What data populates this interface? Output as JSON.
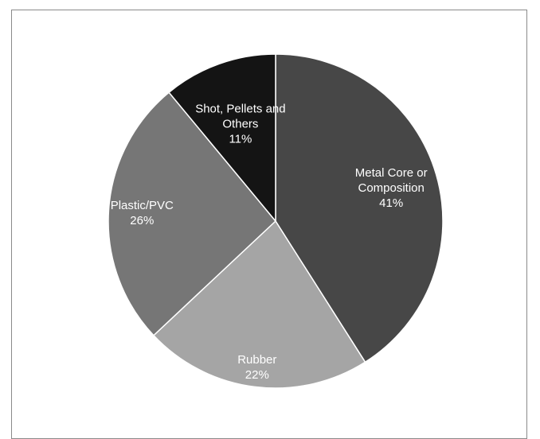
{
  "chart_data": {
    "type": "pie",
    "title": "",
    "slices": [
      {
        "label": "Metal Core or Composition",
        "label_lines": [
          "Metal Core or",
          "Composition"
        ],
        "value": 41,
        "value_label": "41%",
        "color": "#474747"
      },
      {
        "label": "Rubber",
        "label_lines": [
          "Rubber"
        ],
        "value": 22,
        "value_label": "22%",
        "color": "#a5a5a5"
      },
      {
        "label": "Plastic/PVC",
        "label_lines": [
          "Plastic/PVC"
        ],
        "value": 26,
        "value_label": "26%",
        "color": "#767676"
      },
      {
        "label": "Shot, Pellets and Others",
        "label_lines": [
          "Shot, Pellets and",
          "Others"
        ],
        "value": 11,
        "value_label": "11%",
        "color": "#141414"
      }
    ],
    "start_angle": "12 o'clock",
    "direction": "clockwise",
    "slice_border_color": "#ffffff",
    "label_color": "#ffffff",
    "legend": "none"
  }
}
